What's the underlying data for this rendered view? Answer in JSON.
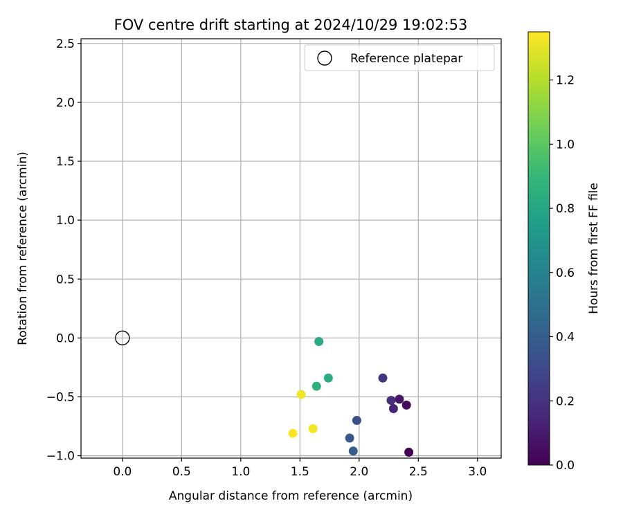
{
  "chart_data": {
    "type": "scatter",
    "title": "FOV centre drift starting at 2024/10/29 19:02:53",
    "xlabel": "Angular distance from reference (arcmin)",
    "ylabel": "Rotation from reference (arcmin)",
    "xlim": [
      -0.35,
      3.2
    ],
    "ylim": [
      -1.02,
      2.54
    ],
    "xticks": [
      0.0,
      0.5,
      1.0,
      1.5,
      2.0,
      2.5,
      3.0
    ],
    "xtick_labels": [
      "0.0",
      "0.5",
      "1.0",
      "1.5",
      "2.0",
      "2.5",
      "3.0"
    ],
    "yticks": [
      -1.0,
      -0.5,
      0.0,
      0.5,
      1.0,
      1.5,
      2.0,
      2.5
    ],
    "ytick_labels": [
      "−1.0",
      "−0.5",
      "0.0",
      "0.5",
      "1.0",
      "1.5",
      "2.0",
      "2.5"
    ],
    "grid": true,
    "legend": {
      "location": "top-right",
      "entries": [
        "Reference platepar"
      ]
    },
    "reference_point": {
      "x": 0.0,
      "y": 0.0,
      "label": "Reference platepar"
    },
    "points": [
      {
        "x": 2.42,
        "y": -0.97,
        "hours": 0.0
      },
      {
        "x": 2.4,
        "y": -0.57,
        "hours": 0.03
      },
      {
        "x": 2.34,
        "y": -0.52,
        "hours": 0.08
      },
      {
        "x": 2.29,
        "y": -0.6,
        "hours": 0.13
      },
      {
        "x": 2.27,
        "y": -0.53,
        "hours": 0.17
      },
      {
        "x": 2.2,
        "y": -0.34,
        "hours": 0.22
      },
      {
        "x": 1.98,
        "y": -0.7,
        "hours": 0.33
      },
      {
        "x": 1.92,
        "y": -0.85,
        "hours": 0.37
      },
      {
        "x": 1.95,
        "y": -0.96,
        "hours": 0.4
      },
      {
        "x": 1.66,
        "y": -0.03,
        "hours": 0.82
      },
      {
        "x": 1.74,
        "y": -0.34,
        "hours": 0.84
      },
      {
        "x": 1.64,
        "y": -0.41,
        "hours": 0.86
      },
      {
        "x": 1.51,
        "y": -0.48,
        "hours": 1.32
      },
      {
        "x": 1.61,
        "y": -0.77,
        "hours": 1.33
      },
      {
        "x": 1.44,
        "y": -0.81,
        "hours": 1.34
      }
    ],
    "colorbar": {
      "label": "Hours from first FF file",
      "range": [
        0.0,
        1.35
      ],
      "ticks": [
        0.0,
        0.2,
        0.4,
        0.6,
        0.8,
        1.0,
        1.2
      ],
      "tick_labels": [
        "0.0",
        "0.2",
        "0.4",
        "0.6",
        "0.8",
        "1.0",
        "1.2"
      ],
      "colormap": "viridis",
      "colormap_stops": [
        "#440154",
        "#482878",
        "#3e4989",
        "#31688e",
        "#26828e",
        "#1f9e89",
        "#35b779",
        "#6ece58",
        "#b5de2b",
        "#fde725"
      ]
    }
  }
}
